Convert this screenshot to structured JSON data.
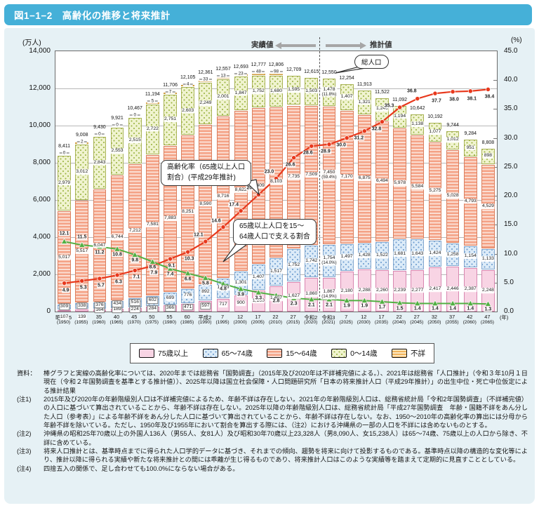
{
  "title": "図1−1−2　高齢化の推移と将来推計",
  "colors": {
    "title_bar": "#45b0d8",
    "panel_bg": "#e6f1f5",
    "aging_line": "#e8391d",
    "support_line": "#52b043",
    "bar_75plus": "#f8d4e4",
    "bar_65_74": "#dcebf8",
    "bar_15_64": "#f4a286",
    "bar_0_14": "#f0f3cf",
    "bar_unknown": "#f2b45c"
  },
  "axes": {
    "left_unit": "(万人)",
    "right_unit": "(%)",
    "year_suffix": "(年)",
    "left_ticks": [
      "14,000",
      "12,000",
      "10,000",
      "8,000",
      "6,000",
      "4,000",
      "2,000",
      "0"
    ],
    "right_ticks": [
      "45.0",
      "40.0",
      "35.0",
      "30.0",
      "25.0",
      "20.0",
      "15.0",
      "10.0",
      "5.0",
      "0.0"
    ]
  },
  "band": {
    "actual": "実績値",
    "projection": "推計値"
  },
  "bubbles": {
    "total_pop": "総人口",
    "aging_line1": "高齢化率（65歳以上人口",
    "aging_line2": "割合）(平成29年推計)",
    "support_line1": "65歳以上人口を15〜",
    "support_line2": "64歳人口で支える割合"
  },
  "legend": [
    {
      "label": "75歳以上"
    },
    {
      "label": "65〜74歳"
    },
    {
      "label": "15〜64歳"
    },
    {
      "label": "0〜14歳"
    },
    {
      "label": "不詳"
    }
  ],
  "chart_data": {
    "type": "stacked-bar + 2 lines",
    "title": "高齢化の推移と将来推計",
    "ylim_left": [
      0,
      14000
    ],
    "ylim_right": [
      0,
      45
    ],
    "grid": "horizontal, every 2000 (万人)",
    "categories_era": [
      "昭和25",
      "30",
      "35",
      "40",
      "45",
      "50",
      "55",
      "60",
      "平成2",
      "7",
      "12",
      "17",
      "22",
      "27",
      "令和2",
      "令和3",
      "7",
      "12",
      "17",
      "22",
      "27",
      "32",
      "37",
      "42",
      "47"
    ],
    "categories_west": [
      "(1950)",
      "(1955)",
      "(1960)",
      "(1965)",
      "(1970)",
      "(1975)",
      "(1980)",
      "(1985)",
      "(1990)",
      "(1995)",
      "(2000)",
      "(2005)",
      "(2010)",
      "(2015)",
      "(2020)",
      "(2021)",
      "(2025)",
      "(2030)",
      "(2035)",
      "(2040)",
      "(2045)",
      "(2050)",
      "(2055)",
      "(2060)",
      "(2065)"
    ],
    "series": [
      {
        "name": "75歳以上",
        "values": [
          107,
          139,
          164,
          189,
          224,
          284,
          366,
          471,
          597,
          717,
          900,
          1160,
          1407,
          1627,
          1860,
          1867,
          2180,
          2288,
          2260,
          2239,
          2277,
          2417,
          2446,
          2387,
          2248
        ]
      },
      {
        "name": "65〜74歳",
        "values": [
          309,
          338,
          376,
          434,
          516,
          602,
          699,
          776,
          892,
          1109,
          1301,
          1407,
          1517,
          1752,
          1742,
          1754,
          1497,
          1428,
          1522,
          1681,
          1643,
          1424,
          1258,
          1154,
          1133
        ]
      },
      {
        "name": "15〜64歳",
        "values": [
          5017,
          5517,
          6047,
          6744,
          7212,
          7581,
          7883,
          8251,
          8590,
          8716,
          8622,
          8409,
          8103,
          7735,
          7509,
          7450,
          7170,
          6875,
          6494,
          5978,
          5584,
          5275,
          5028,
          4793,
          4529
        ]
      },
      {
        "name": "0〜14歳",
        "values": [
          2979,
          3012,
          2843,
          2553,
          2515,
          2722,
          2751,
          2603,
          2249,
          2001,
          1847,
          1752,
          1680,
          1595,
          1503,
          1478,
          1407,
          1321,
          1246,
          1194,
          1138,
          1077,
          1012,
          951,
          898
        ]
      },
      {
        "name": "不詳",
        "values": [
          0,
          2,
          0,
          0,
          0,
          5,
          7,
          4,
          33,
          13,
          23,
          48,
          98,
          0,
          0,
          0,
          0,
          0,
          0,
          0,
          0,
          0,
          0,
          0,
          0
        ]
      }
    ],
    "unknown_label_last_index": 12,
    "totals": [
      8411,
      9008,
      9430,
      9921,
      10467,
      11194,
      11706,
      12105,
      12361,
      12557,
      12693,
      12777,
      12806,
      12709,
      12615,
      12550,
      12254,
      11913,
      11522,
      11092,
      10642,
      10192,
      9744,
      9284,
      8808
    ],
    "aging_rate_pct": [
      4.9,
      5.3,
      5.7,
      6.3,
      7.1,
      7.9,
      9.1,
      10.3,
      12.1,
      14.6,
      17.4,
      20.2,
      23.0,
      26.6,
      28.6,
      28.9,
      30.0,
      31.2,
      32.8,
      35.3,
      36.8,
      37.7,
      38.0,
      38.1,
      38.4
    ],
    "support_ratio": [
      12.1,
      11.5,
      11.2,
      10.8,
      9.8,
      8.6,
      7.4,
      6.6,
      5.8,
      4.8,
      3.9,
      3.3,
      2.8,
      2.3,
      2.1,
      2.1,
      1.9,
      1.9,
      1.7,
      1.5,
      1.4,
      1.4,
      1.4,
      1.4,
      1.3
    ],
    "pct_labels_2021": {
      "index": 15,
      "values": [
        "(14.9%)",
        "(14.0%)",
        "(59.4%)",
        "(11.8%)",
        ""
      ]
    }
  },
  "notes": [
    {
      "tag": "資料：",
      "text": "棒グラフと実線の高齢化率については、2020年までは総務省「国勢調査」（2015年及び2020年は不詳補完値による。）、2021年は総務省「人口推計」（令和３年10月１日現在（令和２年国勢調査を基準とする推計値））、2025年以降は国立社会保障・人口問題研究所「日本の将来推計人口（平成29年推計）」の出生中位・死亡中位仮定による推計結果"
    },
    {
      "tag": "(注1)",
      "text": "2015年及び2020年の年齢階級別人口は不詳補完値によるため、年齢不詳は存在しない。2021年の年齢階級別人口は、総務省統計局「令和2年国勢調査」（不詳補完値）の人口に基づいて算出されていることから、年齢不詳は存在しない。2025年以降の年齢階級別人口は、総務省統計局「平成27年国勢調査　年齢・国籍不詳をあん分した人口（参考表）」による年齢不詳をあん分した人口に基づいて算出されていることから、年齢不詳は存在しない。なお、1950〜2010年の高齢化率の算出には分母から年齢不詳を除いている。ただし、1950年及び1955年において割合を算出する際には、（注2）における沖縄県の一部の人口を不詳には含めないものとする。"
    },
    {
      "tag": "(注2)",
      "text": "沖縄県の昭和25年70歳以上の外国人136人（男55人、女81人）及び昭和30年70歳以上23,328人（男8,090人、女15,238人）は65〜74歳、75歳以上の人口から除き、不詳に含めている。"
    },
    {
      "tag": "(注3)",
      "text": "将来人口推計とは、基準時点までに得られた人口学的データに基づき、それまでの傾向、趨勢を将来に向けて投影するものである。基準時点以降の構造的な変化等により、推計以降に得られる実績や新たな将来推計との間には乖離が生じ得るものであり、将来推計人口はこのような実績等を踏まえて定期的に見直すこととしている。"
    },
    {
      "tag": "(注4)",
      "text": "四捨五入の関係で、足し合わせても100.0%にならない場合がある。"
    }
  ]
}
